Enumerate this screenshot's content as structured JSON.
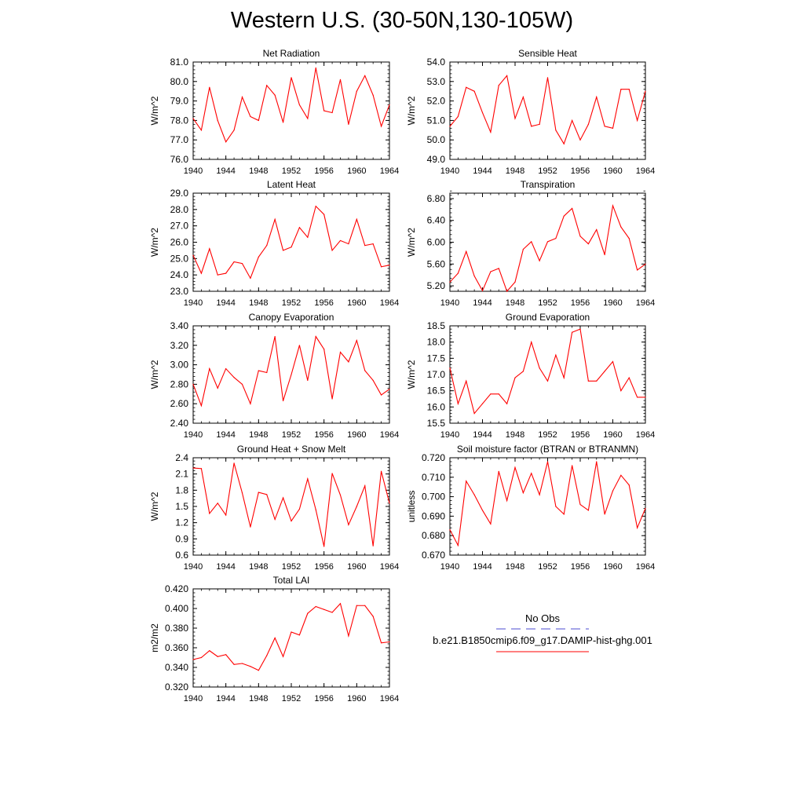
{
  "figure": {
    "title": "Western U.S. (30-50N,130-105W)"
  },
  "legend": {
    "entries": [
      {
        "label": "No Obs",
        "color": "#4b4bd2",
        "dash": "dashed"
      },
      {
        "label": "b.e21.B1850cmip6.f09_g17.DAMIP-hist-ghg.001",
        "color": "#ff0000",
        "dash": "solid"
      }
    ]
  },
  "chart_data": [
    {
      "type": "line",
      "title": "Net Radiation",
      "ylabel": "W/m^2",
      "xlim": [
        1940,
        1964
      ],
      "ylim": [
        76.0,
        81.0
      ],
      "xticks": [
        "1940",
        "1944",
        "1948",
        "1952",
        "1956",
        "1960",
        "1964"
      ],
      "yticks": [
        "76.0",
        "77.0",
        "78.0",
        "79.0",
        "80.0",
        "81.0"
      ],
      "series": [
        {
          "color": "#ff0000",
          "x": [
            1940,
            1941,
            1942,
            1943,
            1944,
            1945,
            1946,
            1947,
            1948,
            1949,
            1950,
            1951,
            1952,
            1953,
            1954,
            1955,
            1956,
            1957,
            1958,
            1959,
            1960,
            1961,
            1962,
            1963,
            1964
          ],
          "values": [
            78.1,
            77.5,
            79.7,
            78.0,
            76.9,
            77.5,
            79.2,
            78.2,
            78.0,
            79.8,
            79.3,
            77.9,
            80.2,
            78.8,
            78.1,
            80.7,
            78.5,
            78.4,
            80.1,
            77.8,
            79.5,
            80.3,
            79.3,
            77.7,
            78.8
          ]
        }
      ]
    },
    {
      "type": "line",
      "title": "Sensible Heat",
      "ylabel": "W/m^2",
      "xlim": [
        1940,
        1964
      ],
      "ylim": [
        49.0,
        54.0
      ],
      "xticks": [
        "1940",
        "1944",
        "1948",
        "1952",
        "1956",
        "1960",
        "1964"
      ],
      "yticks": [
        "49.0",
        "50.0",
        "51.0",
        "52.0",
        "53.0",
        "54.0"
      ],
      "series": [
        {
          "color": "#ff0000",
          "x": [
            1940,
            1941,
            1942,
            1943,
            1944,
            1945,
            1946,
            1947,
            1948,
            1949,
            1950,
            1951,
            1952,
            1953,
            1954,
            1955,
            1956,
            1957,
            1958,
            1959,
            1960,
            1961,
            1962,
            1963,
            1964
          ],
          "values": [
            50.7,
            51.2,
            52.7,
            52.5,
            51.4,
            50.4,
            52.8,
            53.3,
            51.1,
            52.2,
            50.7,
            50.8,
            53.2,
            50.5,
            49.8,
            51.0,
            50.0,
            50.8,
            52.2,
            50.7,
            50.6,
            52.6,
            52.6,
            51.0,
            52.5
          ]
        }
      ]
    },
    {
      "type": "line",
      "title": "Latent Heat",
      "ylabel": "W/m^2",
      "xlim": [
        1940,
        1964
      ],
      "ylim": [
        23.0,
        29.0
      ],
      "xticks": [
        "1940",
        "1944",
        "1948",
        "1952",
        "1956",
        "1960",
        "1964"
      ],
      "yticks": [
        "23.0",
        "24.0",
        "25.0",
        "26.0",
        "27.0",
        "28.0",
        "29.0"
      ],
      "series": [
        {
          "color": "#ff0000",
          "x": [
            1940,
            1941,
            1942,
            1943,
            1944,
            1945,
            1946,
            1947,
            1948,
            1949,
            1950,
            1951,
            1952,
            1953,
            1954,
            1955,
            1956,
            1957,
            1958,
            1959,
            1960,
            1961,
            1962,
            1963,
            1964
          ],
          "values": [
            25.2,
            24.1,
            25.6,
            24.0,
            24.1,
            24.8,
            24.7,
            23.8,
            25.1,
            25.8,
            27.4,
            25.5,
            25.7,
            26.9,
            26.3,
            28.2,
            27.7,
            25.5,
            26.1,
            25.9,
            27.4,
            25.8,
            25.9,
            24.5,
            24.6
          ]
        }
      ]
    },
    {
      "type": "line",
      "title": "Transpiration",
      "ylabel": "W/m^2",
      "xlim": [
        1940,
        1964
      ],
      "ylim": [
        5.1,
        6.9
      ],
      "xticks": [
        "1940",
        "1944",
        "1948",
        "1952",
        "1956",
        "1960",
        "1964"
      ],
      "yticks": [
        "5.20",
        "5.60",
        "6.00",
        "6.40",
        "6.80"
      ],
      "series": [
        {
          "color": "#ff0000",
          "x": [
            1940,
            1941,
            1942,
            1943,
            1944,
            1945,
            1946,
            1947,
            1948,
            1949,
            1950,
            1951,
            1952,
            1953,
            1954,
            1955,
            1956,
            1957,
            1958,
            1959,
            1960,
            1961,
            1962,
            1963,
            1964
          ],
          "values": [
            5.27,
            5.43,
            5.83,
            5.38,
            5.11,
            5.46,
            5.52,
            5.1,
            5.27,
            5.87,
            6.01,
            5.66,
            6.01,
            6.07,
            6.48,
            6.62,
            6.11,
            5.97,
            6.23,
            5.77,
            6.67,
            6.28,
            6.07,
            5.49,
            5.6
          ]
        }
      ]
    },
    {
      "type": "line",
      "title": "Canopy Evaporation",
      "ylabel": "W/m^2",
      "xlim": [
        1940,
        1964
      ],
      "ylim": [
        2.4,
        3.4
      ],
      "xticks": [
        "1940",
        "1944",
        "1948",
        "1952",
        "1956",
        "1960",
        "1964"
      ],
      "yticks": [
        "2.40",
        "2.60",
        "2.80",
        "3.00",
        "3.20",
        "3.40"
      ],
      "series": [
        {
          "color": "#ff0000",
          "x": [
            1940,
            1941,
            1942,
            1943,
            1944,
            1945,
            1946,
            1947,
            1948,
            1949,
            1950,
            1951,
            1952,
            1953,
            1954,
            1955,
            1956,
            1957,
            1958,
            1959,
            1960,
            1961,
            1962,
            1963,
            1964
          ],
          "values": [
            2.8,
            2.58,
            2.96,
            2.76,
            2.96,
            2.87,
            2.8,
            2.6,
            2.94,
            2.92,
            3.29,
            2.63,
            2.9,
            3.2,
            2.84,
            3.29,
            3.16,
            2.65,
            3.13,
            3.03,
            3.25,
            2.94,
            2.84,
            2.69,
            2.75
          ]
        }
      ]
    },
    {
      "type": "line",
      "title": "Ground Evaporation",
      "ylabel": "W/m^2",
      "xlim": [
        1940,
        1964
      ],
      "ylim": [
        15.5,
        18.5
      ],
      "xticks": [
        "1940",
        "1944",
        "1948",
        "1952",
        "1956",
        "1960",
        "1964"
      ],
      "yticks": [
        "15.5",
        "16.0",
        "16.5",
        "17.0",
        "17.5",
        "18.0",
        "18.5"
      ],
      "series": [
        {
          "color": "#ff0000",
          "x": [
            1940,
            1941,
            1942,
            1943,
            1944,
            1945,
            1946,
            1947,
            1948,
            1949,
            1950,
            1951,
            1952,
            1953,
            1954,
            1955,
            1956,
            1957,
            1958,
            1959,
            1960,
            1961,
            1962,
            1963,
            1964
          ],
          "values": [
            17.2,
            16.1,
            16.8,
            15.8,
            16.1,
            16.4,
            16.4,
            16.1,
            16.9,
            17.1,
            18.0,
            17.2,
            16.8,
            17.6,
            16.9,
            18.3,
            18.4,
            16.8,
            16.8,
            17.1,
            17.4,
            16.5,
            16.9,
            16.3,
            16.3
          ]
        }
      ]
    },
    {
      "type": "line",
      "title": "Ground Heat + Snow Melt",
      "ylabel": "W/m^2",
      "xlim": [
        1940,
        1964
      ],
      "ylim": [
        0.6,
        2.4
      ],
      "xticks": [
        "1940",
        "1944",
        "1948",
        "1952",
        "1956",
        "1960",
        "1964"
      ],
      "yticks": [
        "0.6",
        "0.9",
        "1.2",
        "1.5",
        "1.8",
        "2.1",
        "2.4"
      ],
      "series": [
        {
          "color": "#ff0000",
          "x": [
            1940,
            1941,
            1942,
            1943,
            1944,
            1945,
            1946,
            1947,
            1948,
            1949,
            1950,
            1951,
            1952,
            1953,
            1954,
            1955,
            1956,
            1957,
            1958,
            1959,
            1960,
            1961,
            1962,
            1963,
            1964
          ],
          "values": [
            2.21,
            2.2,
            1.37,
            1.56,
            1.34,
            2.3,
            1.75,
            1.12,
            1.76,
            1.72,
            1.26,
            1.66,
            1.23,
            1.45,
            2.01,
            1.44,
            0.76,
            2.11,
            1.71,
            1.16,
            1.5,
            1.88,
            0.77,
            2.15,
            1.56
          ]
        }
      ]
    },
    {
      "type": "line",
      "title": "Soil moisture factor (BTRAN or BTRANMN)",
      "ylabel": "unitless",
      "xlim": [
        1940,
        1964
      ],
      "ylim": [
        0.67,
        0.72
      ],
      "xticks": [
        "1940",
        "1944",
        "1948",
        "1952",
        "1956",
        "1960",
        "1964"
      ],
      "yticks": [
        "0.670",
        "0.680",
        "0.690",
        "0.700",
        "0.710",
        "0.720"
      ],
      "series": [
        {
          "color": "#ff0000",
          "x": [
            1940,
            1941,
            1942,
            1943,
            1944,
            1945,
            1946,
            1947,
            1948,
            1949,
            1950,
            1951,
            1952,
            1953,
            1954,
            1955,
            1956,
            1957,
            1958,
            1959,
            1960,
            1961,
            1962,
            1963,
            1964
          ],
          "values": [
            0.683,
            0.675,
            0.708,
            0.701,
            0.693,
            0.686,
            0.713,
            0.698,
            0.715,
            0.702,
            0.712,
            0.701,
            0.718,
            0.695,
            0.691,
            0.716,
            0.696,
            0.693,
            0.718,
            0.691,
            0.703,
            0.711,
            0.706,
            0.684,
            0.694
          ]
        }
      ]
    },
    {
      "type": "line",
      "title": "Total LAI",
      "ylabel": "m2/m2",
      "xlim": [
        1940,
        1964
      ],
      "ylim": [
        0.32,
        0.42
      ],
      "xticks": [
        "1940",
        "1944",
        "1948",
        "1952",
        "1956",
        "1960",
        "1964"
      ],
      "yticks": [
        "0.320",
        "0.340",
        "0.360",
        "0.380",
        "0.400",
        "0.420"
      ],
      "series": [
        {
          "color": "#ff0000",
          "x": [
            1940,
            1941,
            1942,
            1943,
            1944,
            1945,
            1946,
            1947,
            1948,
            1949,
            1950,
            1951,
            1952,
            1953,
            1954,
            1955,
            1956,
            1957,
            1958,
            1959,
            1960,
            1961,
            1962,
            1963,
            1964
          ],
          "values": [
            0.348,
            0.35,
            0.357,
            0.351,
            0.353,
            0.343,
            0.344,
            0.341,
            0.337,
            0.352,
            0.37,
            0.351,
            0.376,
            0.373,
            0.395,
            0.402,
            0.399,
            0.396,
            0.405,
            0.372,
            0.403,
            0.403,
            0.392,
            0.365,
            0.366
          ]
        }
      ]
    }
  ]
}
